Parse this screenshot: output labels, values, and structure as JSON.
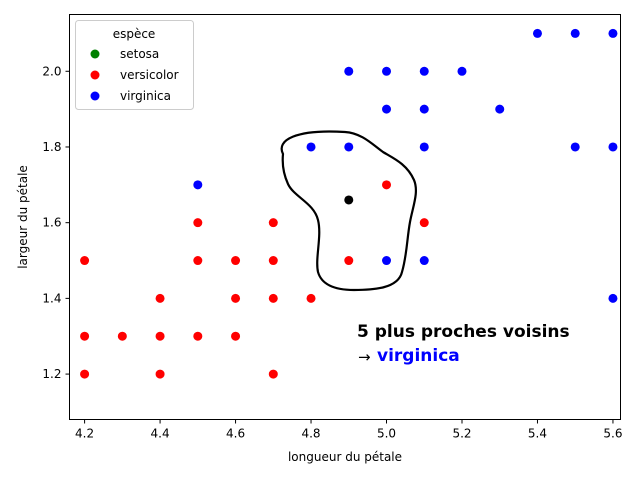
{
  "chart_data": {
    "type": "scatter",
    "xlabel": "longueur du pétale",
    "ylabel": "largeur du pétale",
    "xlim": [
      4.16,
      5.62
    ],
    "ylim": [
      1.08,
      2.15
    ],
    "x_ticks": [
      {
        "value": 4.2,
        "label": "4.2"
      },
      {
        "value": 4.4,
        "label": "4.4"
      },
      {
        "value": 4.6,
        "label": "4.6"
      },
      {
        "value": 4.8,
        "label": "4.8"
      },
      {
        "value": 5.0,
        "label": "5.0"
      },
      {
        "value": 5.2,
        "label": "5.2"
      },
      {
        "value": 5.4,
        "label": "5.4"
      },
      {
        "value": 5.6,
        "label": "5.6"
      }
    ],
    "y_ticks": [
      {
        "value": 1.2,
        "label": "1.2"
      },
      {
        "value": 1.4,
        "label": "1.4"
      },
      {
        "value": 1.6,
        "label": "1.6"
      },
      {
        "value": 1.8,
        "label": "1.8"
      },
      {
        "value": 2.0,
        "label": "2.0"
      }
    ],
    "grid": false,
    "legend": {
      "title": "espèce",
      "placement": "top-left",
      "entries": [
        {
          "label": "setosa",
          "color": "#008000"
        },
        {
          "label": "versicolor",
          "color": "#ff0000"
        },
        {
          "label": "virginica",
          "color": "#0000ff"
        }
      ]
    },
    "series": [
      {
        "name": "versicolor",
        "color": "#ff0000",
        "points": [
          [
            4.2,
            1.5
          ],
          [
            4.2,
            1.3
          ],
          [
            4.2,
            1.2
          ],
          [
            4.3,
            1.3
          ],
          [
            4.4,
            1.4
          ],
          [
            4.4,
            1.3
          ],
          [
            4.4,
            1.2
          ],
          [
            4.5,
            1.6
          ],
          [
            4.5,
            1.5
          ],
          [
            4.5,
            1.3
          ],
          [
            4.6,
            1.5
          ],
          [
            4.6,
            1.4
          ],
          [
            4.6,
            1.3
          ],
          [
            4.7,
            1.6
          ],
          [
            4.7,
            1.5
          ],
          [
            4.7,
            1.4
          ],
          [
            4.7,
            1.2
          ],
          [
            4.8,
            1.4
          ],
          [
            4.9,
            1.5
          ],
          [
            5.0,
            1.7
          ],
          [
            5.1,
            1.6
          ]
        ]
      },
      {
        "name": "virginica",
        "color": "#0000ff",
        "points": [
          [
            4.5,
            1.7
          ],
          [
            4.8,
            1.8
          ],
          [
            4.9,
            2.0
          ],
          [
            4.9,
            1.8
          ],
          [
            5.0,
            2.0
          ],
          [
            5.0,
            1.9
          ],
          [
            5.0,
            1.5
          ],
          [
            5.1,
            2.0
          ],
          [
            5.1,
            1.9
          ],
          [
            5.1,
            1.8
          ],
          [
            5.1,
            1.5
          ],
          [
            5.2,
            2.0
          ],
          [
            5.3,
            1.9
          ],
          [
            5.4,
            2.1
          ],
          [
            5.5,
            2.1
          ],
          [
            5.5,
            1.8
          ],
          [
            5.6,
            2.1
          ],
          [
            5.6,
            1.8
          ],
          [
            5.6,
            1.4
          ]
        ]
      }
    ],
    "query_point": {
      "x": 4.9,
      "y": 1.66,
      "color": "#000000"
    },
    "annotation": {
      "line1": "5 plus proches voisins",
      "arrow": "→",
      "result": "virginica",
      "result_color": "#0000ff"
    }
  }
}
